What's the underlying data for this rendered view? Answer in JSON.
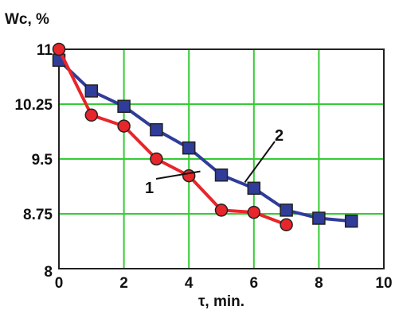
{
  "chart_data": {
    "type": "line",
    "title": "",
    "ylabel": "Wc, %",
    "xlabel": "τ, min.",
    "xlim": [
      0,
      10
    ],
    "ylim": [
      8,
      11
    ],
    "x_ticks": [
      0,
      2,
      4,
      6,
      8,
      10
    ],
    "x_tick_labels": [
      "0",
      "2",
      "4",
      "6",
      "8",
      "10"
    ],
    "y_ticks": [
      8,
      8.75,
      9.5,
      10.25,
      11
    ],
    "y_tick_labels": [
      "8",
      "8.75",
      "9.5",
      "10.25",
      "11"
    ],
    "grid": true,
    "grid_color": "#33cc33",
    "series": [
      {
        "name": "1",
        "color": "#e8252a",
        "marker": "circle",
        "x": [
          0,
          1,
          2,
          3,
          4,
          5,
          6,
          7
        ],
        "y": [
          11.0,
          10.1,
          9.95,
          9.5,
          9.27,
          8.8,
          8.77,
          8.6
        ]
      },
      {
        "name": "2",
        "color": "#2f3c99",
        "marker": "square",
        "x": [
          0,
          1,
          2,
          3,
          4,
          5,
          6,
          7,
          8,
          9
        ],
        "y": [
          10.85,
          10.43,
          10.22,
          9.9,
          9.65,
          9.28,
          9.1,
          8.8,
          8.69,
          8.65
        ]
      }
    ],
    "annotations": [
      {
        "text": "1",
        "target_series": 0
      },
      {
        "text": "2",
        "target_series": 1
      }
    ]
  }
}
